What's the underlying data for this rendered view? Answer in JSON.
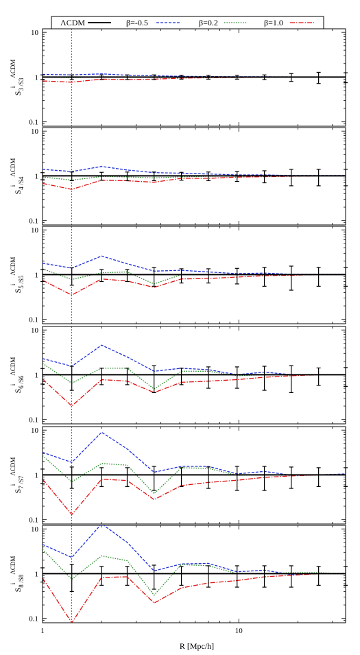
{
  "legend": {
    "entries": [
      {
        "label": "ΛCDM",
        "color": "#000000",
        "dash": "solid"
      },
      {
        "label": "β=-0.5",
        "color": "#1f2fd6",
        "dash": "dashed"
      },
      {
        "label": "β=0.2",
        "color": "#2e8b2e",
        "dash": "dotted"
      },
      {
        "label": "β=1.0",
        "color": "#dd1111",
        "dash": "dashdot"
      }
    ]
  },
  "xaxis": {
    "label": "R [Mpc/h]",
    "tick_labels": [
      "1",
      "10"
    ]
  },
  "chart_data": {
    "type": "line",
    "xscale": "log",
    "yscale": "log",
    "xlim": [
      1,
      35
    ],
    "ylim": [
      0.08,
      12
    ],
    "grid": false,
    "legend_position": "top",
    "vline_x": 1.41,
    "y_tick_labels": [
      "0.1",
      "1",
      "10"
    ],
    "x": [
      1.0,
      1.41,
      2.0,
      2.7,
      3.7,
      5.1,
      7.0,
      9.8,
      13.5,
      18.5,
      25.5,
      35.0
    ],
    "panels": [
      {
        "ylabel": "S_3^i/S_3^ΛCDM",
        "sub": "3",
        "series": [
          {
            "name": "ΛCDM",
            "values": [
              1,
              1,
              1,
              1,
              1,
              1,
              1,
              1,
              1,
              1,
              1,
              1
            ],
            "errors": [
              0.12,
              0.12,
              0.12,
              0.12,
              0.12,
              0.1,
              0.1,
              0.1,
              0.12,
              0.2,
              0.28,
              0.25
            ]
          },
          {
            "name": "β=-0.5",
            "values": [
              1.15,
              1.12,
              1.18,
              1.1,
              1.07,
              1.04,
              1.03,
              1.02,
              1.02,
              1.01,
              1.01,
              1.01
            ]
          },
          {
            "name": "β=0.2",
            "values": [
              1.0,
              0.97,
              1.02,
              1.0,
              0.98,
              0.99,
              1.0,
              1.0,
              1.0,
              1.0,
              1.0,
              1.0
            ]
          },
          {
            "name": "β=1.0",
            "values": [
              0.82,
              0.77,
              0.9,
              0.88,
              0.9,
              0.95,
              0.97,
              0.98,
              0.99,
              1.0,
              1.0,
              1.0
            ]
          }
        ]
      },
      {
        "ylabel": "S_4^i/S_4^ΛCDM",
        "sub": "4",
        "series": [
          {
            "name": "ΛCDM",
            "values": [
              1,
              1,
              1,
              1,
              1,
              1,
              1,
              1,
              1,
              1,
              1,
              1
            ],
            "errors": [
              0.18,
              0.22,
              0.2,
              0.22,
              0.22,
              0.2,
              0.22,
              0.25,
              0.3,
              0.4,
              0.4,
              0.4
            ]
          },
          {
            "name": "β=-0.5",
            "values": [
              1.4,
              1.25,
              1.62,
              1.35,
              1.18,
              1.15,
              1.1,
              1.05,
              1.05,
              1.02,
              1.02,
              1.02
            ]
          },
          {
            "name": "β=0.2",
            "values": [
              0.95,
              0.8,
              0.97,
              0.95,
              0.9,
              0.95,
              0.98,
              0.99,
              1.0,
              1.0,
              1.0,
              1.0
            ]
          },
          {
            "name": "β=1.0",
            "values": [
              0.68,
              0.5,
              0.8,
              0.78,
              0.72,
              0.88,
              0.88,
              0.94,
              0.96,
              0.98,
              1.0,
              1.0
            ]
          }
        ]
      },
      {
        "ylabel": "S_5^i/S_5^ΛCDM",
        "sub": "5",
        "series": [
          {
            "name": "ΛCDM",
            "values": [
              1,
              1,
              1,
              1,
              1,
              1,
              1,
              1,
              1,
              1,
              1,
              1
            ],
            "errors": [
              0.3,
              0.42,
              0.3,
              0.3,
              0.45,
              0.35,
              0.35,
              0.38,
              0.45,
              0.55,
              0.45,
              0.45
            ]
          },
          {
            "name": "β=-0.5",
            "values": [
              1.8,
              1.4,
              2.6,
              1.75,
              1.2,
              1.25,
              1.15,
              1.05,
              1.08,
              1.02,
              1.02,
              1.02
            ]
          },
          {
            "name": "β=0.2",
            "values": [
              1.35,
              0.78,
              1.1,
              1.15,
              0.62,
              1.0,
              1.0,
              1.0,
              1.0,
              1.0,
              1.0,
              1.0
            ]
          },
          {
            "name": "β=1.0",
            "values": [
              0.75,
              0.35,
              0.8,
              0.72,
              0.52,
              0.8,
              0.82,
              0.88,
              0.95,
              0.97,
              1.0,
              1.0
            ]
          }
        ]
      },
      {
        "ylabel": "S_6^i/S_6^ΛCDM",
        "sub": "6",
        "series": [
          {
            "name": "ΛCDM",
            "values": [
              1,
              1,
              1,
              1,
              1,
              1,
              1,
              1,
              1,
              1,
              1,
              1
            ],
            "errors": [
              0.38,
              0.55,
              0.4,
              0.4,
              0.6,
              0.4,
              0.5,
              0.5,
              0.55,
              0.6,
              0.42,
              0.45
            ]
          },
          {
            "name": "β=-0.5",
            "values": [
              2.3,
              1.55,
              4.6,
              2.5,
              1.2,
              1.4,
              1.3,
              1.0,
              1.15,
              1.0,
              1.0,
              1.0
            ]
          },
          {
            "name": "β=0.2",
            "values": [
              1.8,
              0.65,
              1.4,
              1.4,
              0.48,
              1.2,
              1.2,
              0.95,
              1.0,
              1.0,
              1.0,
              1.0
            ]
          },
          {
            "name": "β=1.0",
            "values": [
              0.8,
              0.2,
              0.78,
              0.72,
              0.4,
              0.68,
              0.72,
              0.78,
              0.88,
              0.95,
              1.0,
              1.0
            ]
          }
        ]
      },
      {
        "ylabel": "S_7^i/S_7^ΛCDM",
        "sub": "7",
        "series": [
          {
            "name": "ΛCDM",
            "values": [
              1,
              1,
              1,
              1,
              1,
              1,
              1,
              1,
              1,
              1,
              1,
              1
            ],
            "errors": [
              0.35,
              0.5,
              0.45,
              0.45,
              0.55,
              0.45,
              0.5,
              0.55,
              0.55,
              0.5,
              0.45,
              0.45
            ]
          },
          {
            "name": "β=-0.5",
            "values": [
              3.2,
              1.9,
              9.0,
              3.8,
              1.15,
              1.55,
              1.55,
              1.05,
              1.2,
              0.98,
              1.0,
              1.05
            ]
          },
          {
            "name": "β=0.2",
            "values": [
              2.7,
              0.7,
              1.8,
              1.65,
              0.38,
              1.45,
              1.4,
              0.98,
              1.0,
              1.0,
              1.0,
              1.0
            ]
          },
          {
            "name": "β=1.0",
            "values": [
              0.8,
              0.13,
              0.8,
              0.75,
              0.28,
              0.58,
              0.68,
              0.76,
              0.88,
              0.95,
              1.0,
              1.0
            ]
          }
        ]
      },
      {
        "ylabel": "S_8^i/S_8^ΛCDM",
        "sub": "8",
        "series": [
          {
            "name": "ΛCDM",
            "values": [
              1,
              1,
              1,
              1,
              1,
              1,
              1,
              1,
              1,
              1,
              1,
              1
            ],
            "errors": [
              0.35,
              0.6,
              0.45,
              0.45,
              0.55,
              0.45,
              0.5,
              0.5,
              0.5,
              0.5,
              0.45,
              0.45
            ]
          },
          {
            "name": "β=-0.5",
            "values": [
              4.5,
              2.3,
              13.0,
              5.0,
              1.15,
              1.65,
              1.7,
              1.1,
              1.2,
              0.95,
              1.0,
              1.02
            ]
          },
          {
            "name": "β=0.2",
            "values": [
              3.5,
              0.75,
              2.5,
              1.95,
              0.33,
              1.6,
              1.5,
              1.0,
              1.0,
              1.05,
              1.05,
              1.0
            ]
          },
          {
            "name": "β=1.0",
            "values": [
              0.8,
              0.08,
              0.82,
              0.85,
              0.22,
              0.48,
              0.62,
              0.7,
              0.85,
              0.92,
              1.0,
              1.0
            ]
          }
        ]
      }
    ]
  }
}
